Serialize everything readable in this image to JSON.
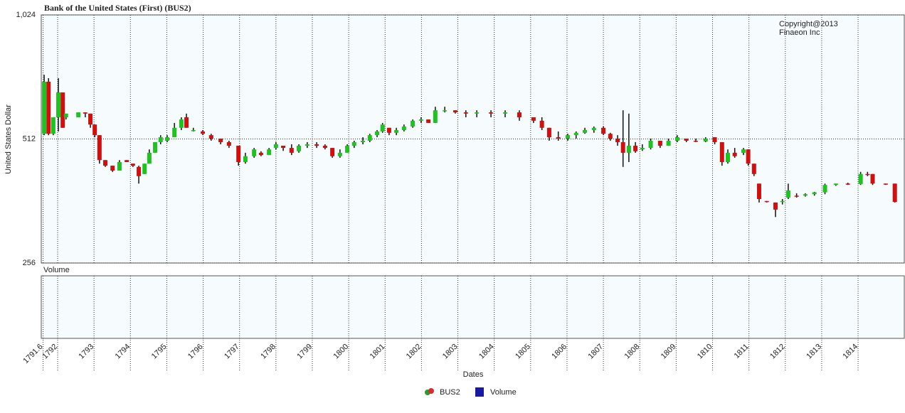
{
  "chart_data": {
    "type": "candlestick",
    "title": "Bank of the United States (First) (BUS2)",
    "y_label": "United States Dollar",
    "x_label": "Dates",
    "annotation": [
      "Copyright@2013",
      "Finaeon Inc"
    ],
    "volume_label": "Volume",
    "log_scale": true,
    "grid": true,
    "legend": "bottom",
    "up_color": "#22c022",
    "down_color": "#cc1111",
    "ylim": [
      256,
      1024
    ],
    "yticks": [
      256,
      512,
      {
        "value": 1024,
        "label": "1,024"
      }
    ],
    "xlim": [
      1791.55,
      1815.27
    ],
    "xticks": [
      1791.6,
      1792,
      1793,
      1794,
      1795,
      1796,
      1797,
      1798,
      1799,
      1800,
      1801,
      1802,
      1803,
      1804,
      1805,
      1806,
      1807,
      1808,
      1809,
      1810,
      1811,
      1812,
      1813,
      1814
    ],
    "x": [
      1791.63,
      1791.75,
      1791.88,
      1792.02,
      1792.14,
      1792.23,
      1792.57,
      1792.76,
      1792.9,
      1793.02,
      1793.15,
      1793.31,
      1793.51,
      1793.7,
      1793.9,
      1794.07,
      1794.23,
      1794.39,
      1794.52,
      1794.68,
      1794.83,
      1795.01,
      1795.21,
      1795.4,
      1795.54,
      1795.73,
      1795.99,
      1796.22,
      1796.48,
      1796.71,
      1796.97,
      1797.16,
      1797.4,
      1797.59,
      1797.81,
      1798.0,
      1798.2,
      1798.43,
      1798.63,
      1798.86,
      1799.12,
      1799.35,
      1799.55,
      1799.76,
      1799.96,
      1800.15,
      1800.39,
      1800.58,
      1800.78,
      1800.93,
      1801.11,
      1801.31,
      1801.52,
      1801.76,
      1801.99,
      1802.19,
      1802.38,
      1802.64,
      1802.93,
      1803.22,
      1803.52,
      1803.91,
      1804.3,
      1804.69,
      1805.08,
      1805.31,
      1805.51,
      1805.76,
      1806.02,
      1806.25,
      1806.49,
      1806.74,
      1807.0,
      1807.19,
      1807.39,
      1807.54,
      1807.7,
      1807.88,
      1808.07,
      1808.3,
      1808.56,
      1808.79,
      1809.03,
      1809.28,
      1809.54,
      1809.81,
      1810.06,
      1810.26,
      1810.42,
      1810.61,
      1810.85,
      1810.98,
      1811.14,
      1811.28,
      1811.49,
      1811.73,
      1811.92,
      1812.08,
      1812.31,
      1812.55,
      1812.8,
      1813.09,
      1813.39,
      1813.72,
      1814.07,
      1814.26,
      1814.4,
      1814.76,
      1815.01
    ],
    "series": [
      {
        "name": "BUS2",
        "open": [
          527,
          705,
          527,
          578,
          664,
          578,
          578,
          594,
          590,
          555,
          523,
          455,
          441,
          429,
          455,
          446,
          438,
          421,
          446,
          474,
          503,
          507,
          517,
          545,
          578,
          538,
          534,
          523,
          513,
          503,
          493,
          450,
          465,
          474,
          468,
          487,
          493,
          487,
          478,
          493,
          497,
          493,
          487,
          465,
          474,
          493,
          503,
          507,
          523,
          534,
          545,
          530,
          538,
          549,
          567,
          571,
          560,
          601,
          601,
          594,
          590,
          594,
          590,
          594,
          578,
          567,
          545,
          517,
          513,
          523,
          530,
          538,
          545,
          527,
          513,
          503,
          474,
          493,
          483,
          487,
          507,
          493,
          507,
          513,
          507,
          505,
          517,
          503,
          450,
          474,
          474,
          483,
          446,
          399,
          362,
          359,
          360,
          369,
          373,
          373,
          376,
          380,
          396,
          399,
          398,
          421,
          421,
          399,
          399
        ],
        "high": [
          733,
          719,
          578,
          719,
          664,
          590,
          594,
          594,
          590,
          555,
          523,
          455,
          441,
          455,
          455,
          446,
          441,
          446,
          483,
          503,
          523,
          523,
          560,
          578,
          590,
          545,
          538,
          527,
          513,
          507,
          493,
          474,
          487,
          478,
          487,
          503,
          493,
          497,
          497,
          503,
          503,
          497,
          487,
          483,
          497,
          507,
          517,
          527,
          538,
          560,
          545,
          545,
          555,
          571,
          578,
          571,
          613,
          613,
          601,
          601,
          601,
          601,
          601,
          601,
          578,
          578,
          545,
          534,
          527,
          534,
          545,
          549,
          549,
          530,
          523,
          601,
          590,
          503,
          497,
          513,
          507,
          513,
          523,
          513,
          513,
          517,
          517,
          503,
          483,
          487,
          487,
          483,
          446,
          399,
          362,
          359,
          366,
          399,
          378,
          378,
          381,
          399,
          399,
          401,
          426,
          426,
          421,
          399,
          399
        ],
        "low": [
          523,
          523,
          523,
          534,
          545,
          571,
          578,
          578,
          545,
          517,
          446,
          438,
          426,
          429,
          450,
          438,
          399,
          421,
          446,
          474,
          497,
          503,
          517,
          538,
          545,
          534,
          523,
          507,
          497,
          487,
          441,
          446,
          461,
          465,
          468,
          483,
          479,
          468,
          474,
          487,
          487,
          483,
          461,
          461,
          474,
          487,
          497,
          503,
          517,
          530,
          523,
          523,
          534,
          545,
          560,
          560,
          560,
          594,
          590,
          578,
          578,
          578,
          578,
          567,
          560,
          538,
          507,
          507,
          507,
          513,
          527,
          530,
          523,
          507,
          493,
          438,
          450,
          474,
          479,
          483,
          487,
          493,
          503,
          503,
          503,
          503,
          497,
          441,
          446,
          461,
          468,
          441,
          416,
          359,
          359,
          331,
          355,
          366,
          369,
          371,
          373,
          376,
          394,
          396,
          396,
          416,
          396,
          396,
          359
        ],
        "close": [
          705,
          527,
          578,
          664,
          545,
          590,
          594,
          590,
          555,
          523,
          455,
          441,
          429,
          450,
          450,
          441,
          416,
          446,
          474,
          503,
          517,
          517,
          545,
          571,
          545,
          538,
          527,
          513,
          503,
          493,
          450,
          465,
          483,
          468,
          483,
          497,
          487,
          474,
          493,
          497,
          493,
          487,
          465,
          474,
          493,
          503,
          507,
          523,
          534,
          555,
          530,
          538,
          549,
          567,
          571,
          560,
          601,
          601,
          594,
          590,
          594,
          590,
          594,
          578,
          567,
          545,
          517,
          513,
          523,
          530,
          538,
          545,
          527,
          513,
          503,
          474,
          493,
          478,
          487,
          507,
          493,
          507,
          517,
          507,
          505,
          513,
          503,
          450,
          474,
          465,
          483,
          446,
          421,
          366,
          360,
          345,
          362,
          384,
          371,
          376,
          380,
          396,
          399,
          398,
          421,
          419,
          399,
          397,
          360
        ]
      },
      {
        "name": "Volume",
        "color": "#1a1aa0"
      }
    ]
  }
}
